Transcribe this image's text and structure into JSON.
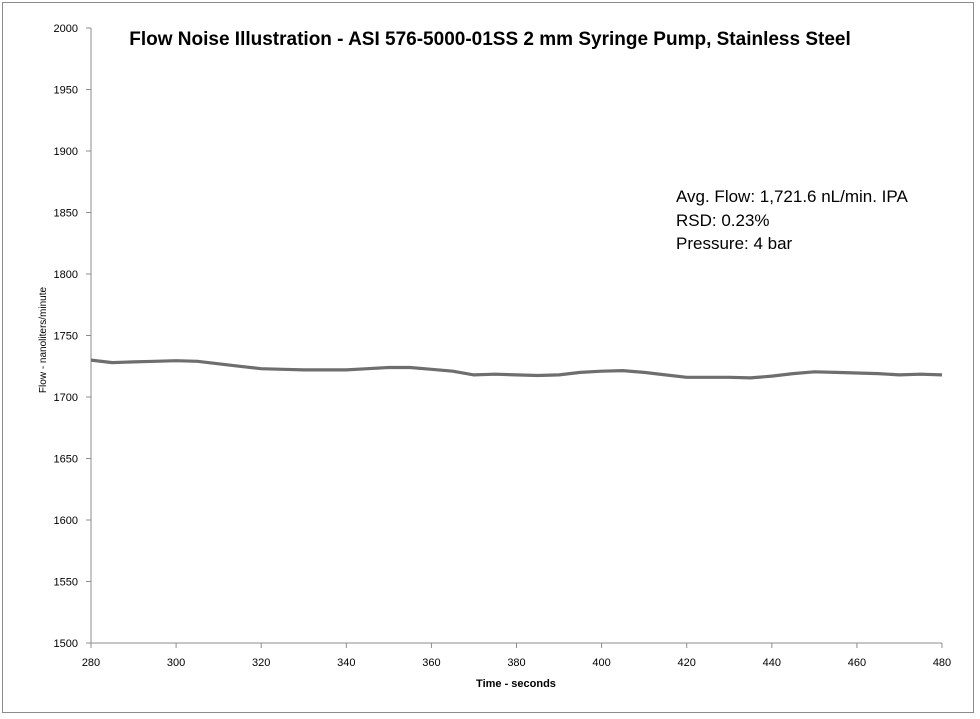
{
  "chart_data": {
    "type": "line",
    "title": "Flow Noise Illustration  - ASI 576-5000-01SS 2 mm Syringe Pump, Stainless Steel",
    "xlabel": "Time - seconds",
    "ylabel": "Flow - nanoliters/minute",
    "xlim": [
      280,
      480
    ],
    "ylim": [
      1500,
      2000
    ],
    "x_ticks": [
      "280",
      "300",
      "320",
      "340",
      "360",
      "380",
      "400",
      "420",
      "440",
      "460",
      "480"
    ],
    "y_ticks": [
      "1500",
      "1550",
      "1600",
      "1650",
      "1700",
      "1750",
      "1800",
      "1850",
      "1900",
      "1950",
      "2000"
    ],
    "grid": false,
    "series_color": "#6e6e6e",
    "series": [
      {
        "x": [
          280,
          285,
          290,
          295,
          300,
          305,
          310,
          315,
          320,
          325,
          330,
          335,
          340,
          345,
          350,
          355,
          360,
          365,
          370,
          375,
          380,
          385,
          390,
          395,
          400,
          405,
          410,
          415,
          420,
          425,
          430,
          435,
          440,
          445,
          450,
          455,
          460,
          465,
          470,
          475,
          480
        ],
        "values": [
          1730,
          1728,
          1728.5,
          1729,
          1729.5,
          1729,
          1727,
          1725,
          1723,
          1722.5,
          1722,
          1722,
          1722,
          1723,
          1724,
          1724,
          1722.5,
          1721,
          1718,
          1718.5,
          1718,
          1717.5,
          1718,
          1720,
          1721,
          1721.5,
          1720,
          1718,
          1716,
          1716,
          1716,
          1715.5,
          1717,
          1719,
          1720.5,
          1720,
          1719.5,
          1719,
          1718,
          1718.5,
          1718
        ]
      }
    ],
    "annotations": [
      "Avg. Flow: 1,721.6 nL/min.  IPA",
      "RSD: 0.23%",
      "Pressure: 4 bar"
    ]
  }
}
